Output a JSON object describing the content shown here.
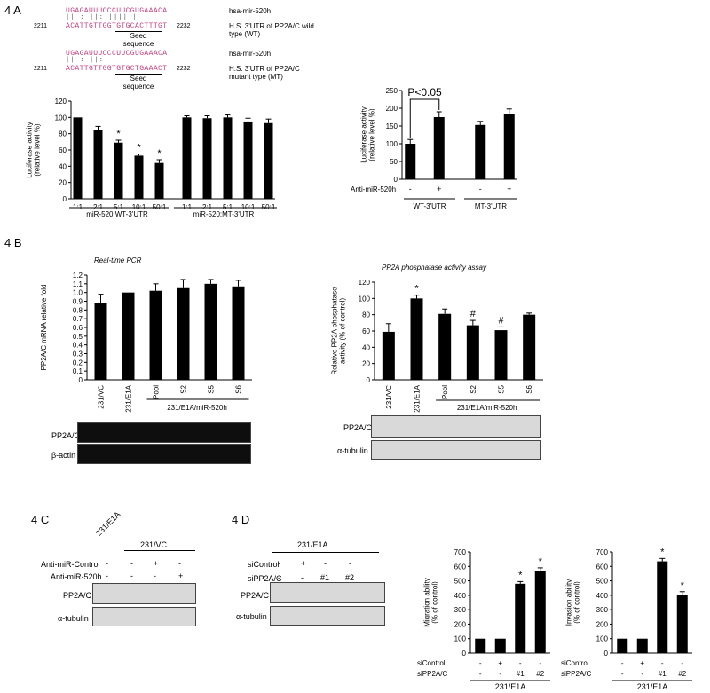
{
  "panel_4a": {
    "label": "4 A",
    "alignments": [
      {
        "mir_seq": "UGAGAUUUCCCUUCGUGAAACA",
        "mir_name": "hsa-mir-520h",
        "num_left": "2211",
        "num_right": "2232",
        "utr_seq": "ACATTGTTGGTGTGCACTTTGT",
        "utr_name": "H.S. 3'UTR of PP2A/C wild type (WT)",
        "seed": "Seed\nsequence"
      },
      {
        "mir_seq": "UGAGAUUUCCCUUCGUGAAACA",
        "mir_name": "hsa-mir-520h",
        "num_left": "2211",
        "num_right": "2232",
        "utr_seq": "ACATTGTTGGTGTGCTGAAACT",
        "utr_name": "H.S. 3'UTR of PP2A/C mutant type (MT)",
        "seed": "Seed\nsequence"
      }
    ]
  },
  "panel_4b": {
    "label": "4 B",
    "blot_left_rows": [
      "PP2A/C",
      "β-actin"
    ],
    "blot_right_rows": [
      "PP2A/C",
      "α-tubulin"
    ]
  },
  "panel_4c": {
    "label": "4 C",
    "lanes": [
      "231/E1A",
      "231/VC"
    ],
    "rows": [
      {
        "name": "Anti-miR-Control",
        "vals": [
          "-",
          "-",
          "+",
          "-"
        ]
      },
      {
        "name": "Anti-miR-520h",
        "vals": [
          "-",
          "-",
          "-",
          "+"
        ]
      }
    ],
    "blots": [
      "PP2A/C",
      "α-tubulin"
    ]
  },
  "panel_4d": {
    "label": "4 D",
    "group": "231/E1A",
    "rows": [
      {
        "name": "siControl",
        "vals": [
          "-",
          "+",
          "-",
          "-"
        ]
      },
      {
        "name": "siPP2A/C",
        "vals": [
          "-",
          "-",
          "#1",
          "#2"
        ]
      }
    ],
    "blots": [
      "PP2A/C",
      "α-tubulin"
    ]
  },
  "chart_data": [
    {
      "type": "bar",
      "ylabel": "Luciferase activity\n(relative level %)",
      "ylim": [
        0,
        120
      ],
      "yticks": [
        0,
        20,
        40,
        60,
        80,
        100,
        120
      ],
      "categories": [
        "1:1",
        "2:1",
        "5:1",
        "10:1",
        "50:1",
        "1:1",
        "2:1",
        "5:1",
        "10:1",
        "50:1"
      ],
      "values": [
        100,
        85,
        69,
        53,
        44,
        100,
        99,
        100,
        95,
        93
      ],
      "errors": [
        0,
        4,
        3,
        2,
        4,
        2,
        3,
        3,
        4,
        5
      ],
      "annotations": [
        "",
        "",
        "*",
        "*",
        "*",
        "",
        "",
        "",
        "",
        ""
      ],
      "groups": [
        "miR-520:WT-3'UTR",
        "miR-520:MT-3'UTR"
      ]
    },
    {
      "type": "bar",
      "ylabel": "Luciferase activity\n(relative level %)",
      "ylim": [
        0,
        250
      ],
      "yticks": [
        0,
        50,
        100,
        150,
        200,
        250
      ],
      "categories": [
        "-",
        "+",
        "-",
        "+"
      ],
      "values": [
        100,
        175,
        153,
        183
      ],
      "errors": [
        12,
        15,
        10,
        15
      ],
      "row_label": "Anti-miR-520h",
      "groups": [
        "WT-3'UTR",
        "MT-3'UTR"
      ],
      "significance": "P<0.05"
    },
    {
      "type": "bar",
      "title": "Real-time PCR",
      "ylabel": "PP2A/C mRNA relative fold",
      "ylim": [
        0,
        1.2
      ],
      "yticks": [
        0,
        0.1,
        0.2,
        0.3,
        0.4,
        0.5,
        0.6,
        0.7,
        0.8,
        0.9,
        1.0,
        1.1,
        1.2
      ],
      "categories": [
        "231/VC",
        "231/E1A",
        "Pool",
        "S2",
        "S5",
        "S6"
      ],
      "values": [
        0.88,
        1.0,
        1.02,
        1.05,
        1.1,
        1.07
      ],
      "errors": [
        0.1,
        0,
        0.08,
        0.1,
        0.05,
        0.07
      ],
      "group": "231/E1A/miR-520h"
    },
    {
      "type": "bar",
      "title": "PP2A phosphatase activity assay",
      "ylabel": "Relative PP2A phosphatase\nactivity (% of control)",
      "ylim": [
        0,
        120
      ],
      "yticks": [
        0,
        20,
        40,
        60,
        80,
        100,
        120
      ],
      "categories": [
        "231/VC",
        "231/E1A",
        "Pool",
        "S2",
        "S5",
        "S6"
      ],
      "values": [
        59,
        100,
        81,
        67,
        61,
        80
      ],
      "errors": [
        10,
        4,
        6,
        6,
        4,
        2
      ],
      "annotations": [
        "",
        "*",
        "",
        "#",
        "#",
        ""
      ],
      "group": "231/E1A/miR-520h"
    },
    {
      "type": "bar",
      "ylabel": "Migration ability\n(% of control)",
      "ylim": [
        0,
        700
      ],
      "yticks": [
        0,
        100,
        200,
        300,
        400,
        500,
        600,
        700
      ],
      "values": [
        100,
        100,
        480,
        570
      ],
      "errors": [
        0,
        0,
        15,
        20
      ],
      "annotations": [
        "",
        "",
        "*",
        "*"
      ],
      "rows": [
        {
          "name": "siControl",
          "vals": [
            "-",
            "+",
            "-",
            "-"
          ]
        },
        {
          "name": "siPP2A/C",
          "vals": [
            "-",
            "-",
            "#1",
            "#2"
          ]
        }
      ],
      "group": "231/E1A"
    },
    {
      "type": "bar",
      "ylabel": "Invasion ability\n(% of control)",
      "ylim": [
        0,
        700
      ],
      "yticks": [
        0,
        100,
        200,
        300,
        400,
        500,
        600,
        700
      ],
      "values": [
        100,
        100,
        635,
        405
      ],
      "errors": [
        0,
        0,
        20,
        20
      ],
      "annotations": [
        "",
        "",
        "*",
        "*"
      ],
      "rows": [
        {
          "name": "siControl",
          "vals": [
            "-",
            "+",
            "-",
            "-"
          ]
        },
        {
          "name": "siPP2A/C",
          "vals": [
            "-",
            "-",
            "#1",
            "#2"
          ]
        }
      ],
      "group": "231/E1A"
    }
  ]
}
